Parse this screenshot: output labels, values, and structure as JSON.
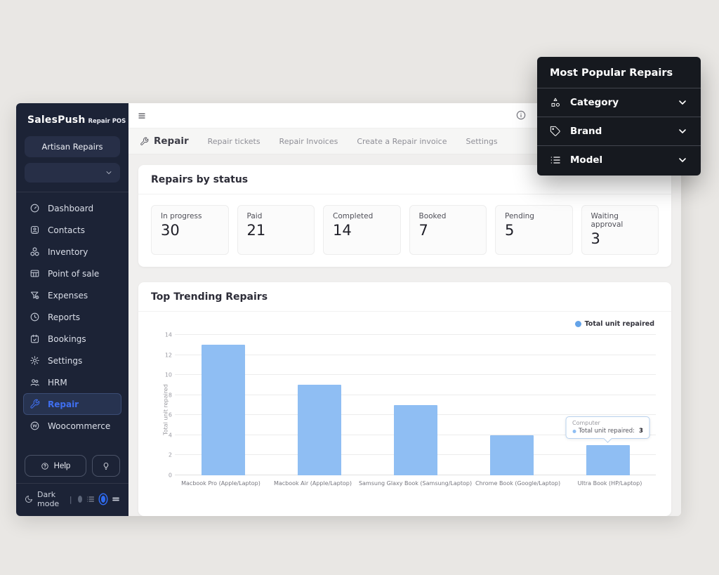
{
  "colors": {
    "accent_blue": "#2f6bf0",
    "bar_fill": "#8fbef3",
    "sidebar_bg": "#1c2336",
    "popup_bg": "#16191f"
  },
  "brand": {
    "name": "SalesPush",
    "suffix": "Repair POS"
  },
  "sidebar": {
    "store_button": "Artisan Repairs",
    "items": [
      {
        "label": "Dashboard"
      },
      {
        "label": "Contacts"
      },
      {
        "label": "Inventory"
      },
      {
        "label": "Point of sale"
      },
      {
        "label": "Expenses"
      },
      {
        "label": "Reports"
      },
      {
        "label": "Bookings"
      },
      {
        "label": "Settings"
      },
      {
        "label": "HRM"
      },
      {
        "label": "Repair"
      },
      {
        "label": "Woocommerce"
      }
    ],
    "help_label": "Help",
    "footer": {
      "dark_mode_label": "Dark mode",
      "separator": "|"
    }
  },
  "tabs": [
    {
      "label": "Repair"
    },
    {
      "label": "Repair tickets"
    },
    {
      "label": "Repair Invoices"
    },
    {
      "label": "Create a Repair invoice"
    },
    {
      "label": "Settings"
    }
  ],
  "status_section": {
    "title": "Repairs by status",
    "cards": [
      {
        "label": "In progress",
        "value": "30"
      },
      {
        "label": "Paid",
        "value": "21"
      },
      {
        "label": "Completed",
        "value": "14"
      },
      {
        "label": "Booked",
        "value": "7"
      },
      {
        "label": "Pending",
        "value": "5"
      },
      {
        "label": "Waiting approval",
        "value": "3"
      }
    ]
  },
  "chart_section": {
    "title": "Top Trending Repairs"
  },
  "chart_data": {
    "type": "bar",
    "title": "Top Trending Repairs",
    "categories": [
      "Macbook Pro (Apple/Laptop)",
      "Macbook Air (Apple/Laptop)",
      "Samsung Glaxy Book (Samsung/Laptop)",
      "Chrome Book (Google/Laptop)",
      "Ultra Book (HP/Laptop)"
    ],
    "values": [
      13,
      9,
      7,
      4,
      3
    ],
    "series_name": "Total unit repaired",
    "xlabel": "",
    "ylabel": "Total unit repaired",
    "ylim": [
      0,
      14
    ],
    "ytick_step": 2,
    "grid": "horizontal",
    "legend_position": "top-right",
    "bar_color": "#8fbef3",
    "tooltip": {
      "target_index": 4,
      "title": "Computer",
      "label": "Total unit repaired:",
      "value": "3"
    }
  },
  "popup": {
    "title": "Most Popular Repairs",
    "items": [
      {
        "label": "Category"
      },
      {
        "label": "Brand"
      },
      {
        "label": "Model"
      }
    ]
  }
}
